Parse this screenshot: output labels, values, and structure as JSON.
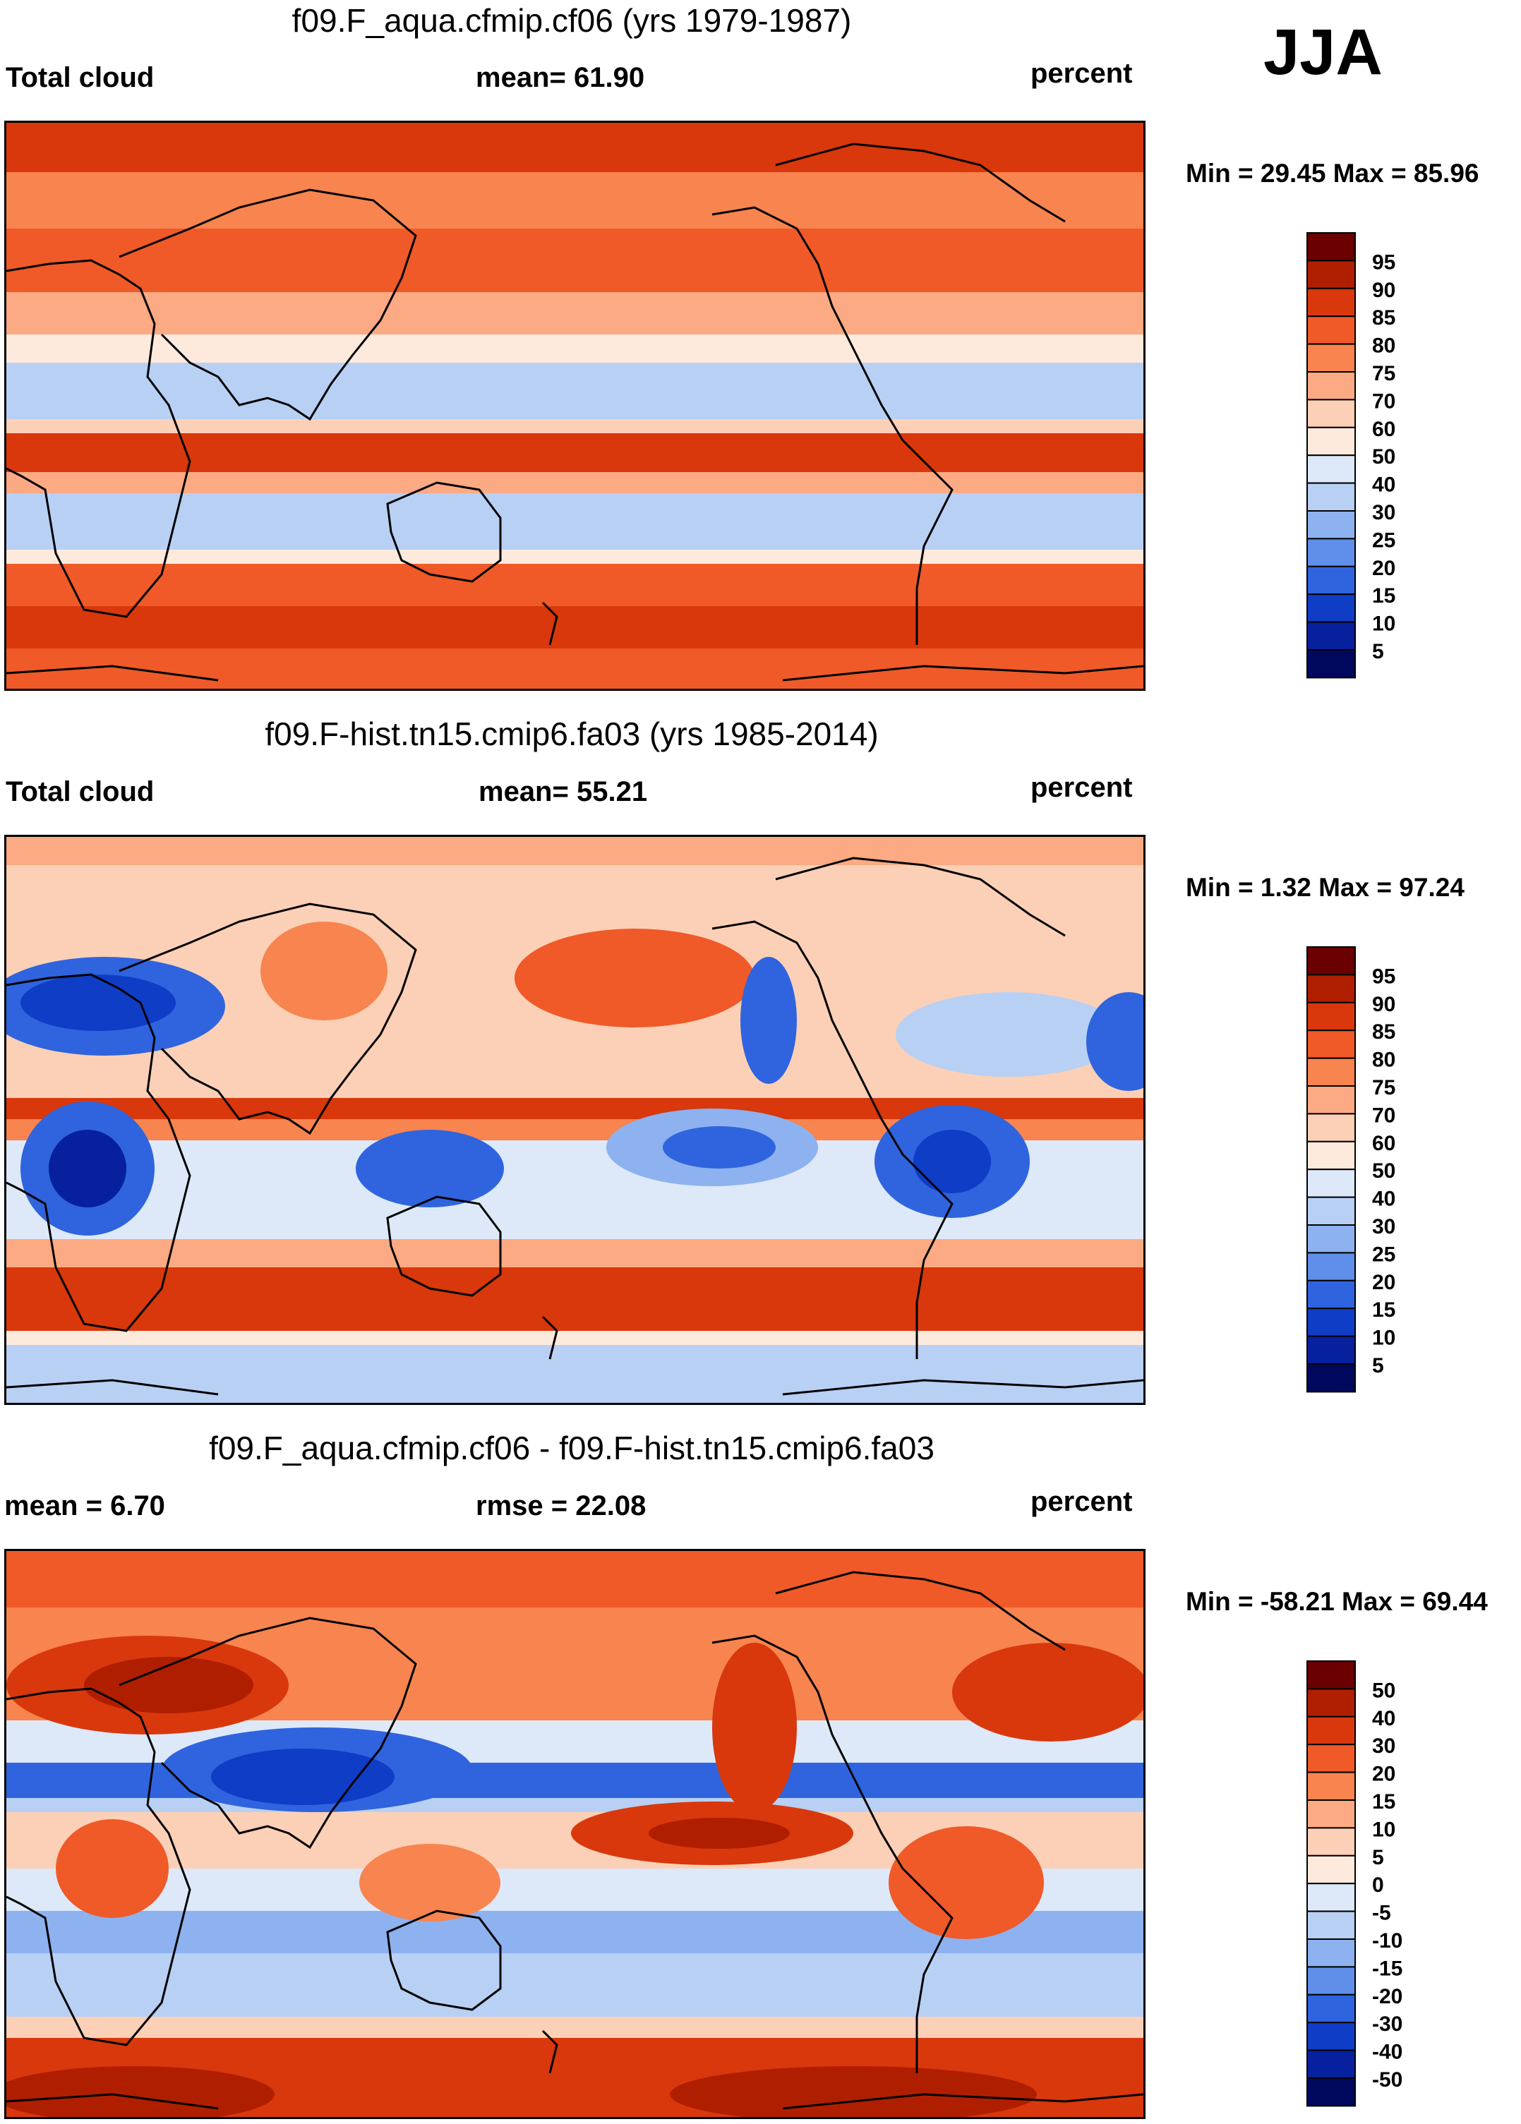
{
  "season": "JJA",
  "colors": {
    "ocean_warm": "#f26a3a",
    "ocean_cool": "#cfe2f8",
    "coastline": "#000000"
  },
  "panels": [
    {
      "id": "p1",
      "title": "f09.F_aqua.cfmip.cf06 (yrs 1979-1987)",
      "left_label": "Total cloud",
      "center_label": "mean=  61.90",
      "right_label": "percent",
      "minmax": "Min =  29.45 Max =  85.96",
      "cbar": {
        "labels": [
          "95",
          "90",
          "85",
          "80",
          "75",
          "70",
          "60",
          "50",
          "40",
          "30",
          "25",
          "20",
          "15",
          "10",
          "5"
        ],
        "colors": [
          "#6a0000",
          "#b01e00",
          "#d8380c",
          "#ef5a28",
          "#f8844f",
          "#fbaa84",
          "#fcd0b6",
          "#fdeadd",
          "#dde9f8",
          "#b8d0f4",
          "#8db2ef",
          "#5f8fe9",
          "#2f64de",
          "#0f3dc6",
          "#06209e",
          "#00085e"
        ]
      }
    },
    {
      "id": "p2",
      "title": "f09.F-hist.tn15.cmip6.fa03 (yrs 1985-2014)",
      "left_label": "Total cloud",
      "center_label": "mean=  55.21",
      "right_label": "percent",
      "minmax": "Min =    1.32 Max =  97.24",
      "cbar": {
        "labels": [
          "95",
          "90",
          "85",
          "80",
          "75",
          "70",
          "60",
          "50",
          "40",
          "30",
          "25",
          "20",
          "15",
          "10",
          "5"
        ],
        "colors": [
          "#6a0000",
          "#b01e00",
          "#d8380c",
          "#ef5a28",
          "#f8844f",
          "#fbaa84",
          "#fcd0b6",
          "#fdeadd",
          "#dde9f8",
          "#b8d0f4",
          "#8db2ef",
          "#5f8fe9",
          "#2f64de",
          "#0f3dc6",
          "#06209e",
          "#00085e"
        ]
      }
    },
    {
      "id": "p3",
      "title": "f09.F_aqua.cfmip.cf06 - f09.F-hist.tn15.cmip6.fa03",
      "left_label": "mean =    6.70",
      "center_label": "rmse =  22.08",
      "right_label": "percent",
      "minmax": "Min = -58.21 Max =  69.44",
      "cbar": {
        "labels": [
          "50",
          "40",
          "30",
          "20",
          "15",
          "10",
          "5",
          "0",
          "-5",
          "-10",
          "-15",
          "-20",
          "-30",
          "-40",
          "-50"
        ],
        "colors": [
          "#6a0000",
          "#b01e00",
          "#d8380c",
          "#ef5a28",
          "#f8844f",
          "#fbaa84",
          "#fcd0b6",
          "#fdeadd",
          "#dde9f8",
          "#b8d0f4",
          "#8db2ef",
          "#5f8fe9",
          "#2f64de",
          "#0f3dc6",
          "#06209e",
          "#00085e"
        ]
      }
    }
  ]
}
